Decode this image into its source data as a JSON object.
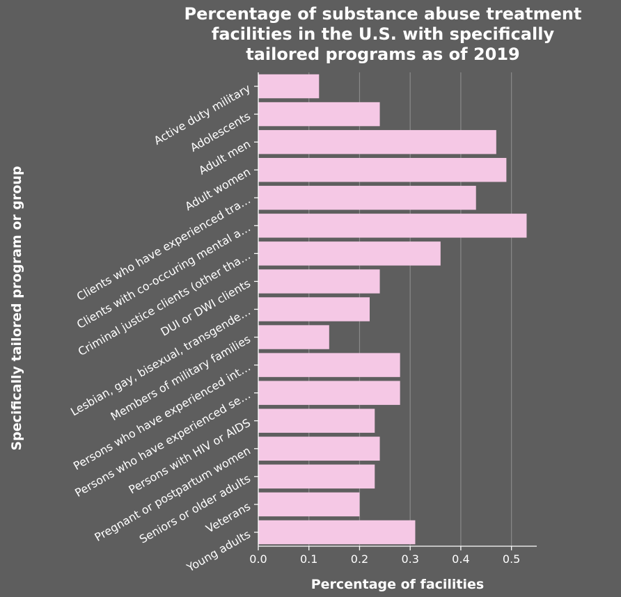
{
  "chart_data": {
    "type": "bar",
    "orientation": "horizontal",
    "title": "Percentage of substance abuse treatment facilities in the U.S. with specifically tailored programs as of 2019",
    "xlabel": "Percentage of facilities",
    "ylabel": "Specifically tailored program or group",
    "categories": [
      "Active duty military",
      "Adolescents",
      "Adult men",
      "Adult women",
      "Clients who have experienced tra…",
      "Clients with co-occuring mental a…",
      "Criminal justice clients (other tha…",
      "DUI or DWI clients",
      "Lesbian, gay, bisexual, transgende…",
      "Members of military families",
      "Persons who have experienced int…",
      "Persons who have experienced se…",
      "Persons with HIV or AIDS",
      "Pregnant or postpartum women",
      "Seniors or older adults",
      "Veterans",
      "Young adults"
    ],
    "values": [
      0.12,
      0.24,
      0.47,
      0.49,
      0.43,
      0.53,
      0.36,
      0.24,
      0.22,
      0.14,
      0.28,
      0.28,
      0.23,
      0.24,
      0.23,
      0.2,
      0.31
    ],
    "xlim": [
      0,
      0.55
    ],
    "xticks": [
      0.0,
      0.1,
      0.2,
      0.3,
      0.4,
      0.5
    ],
    "xtick_labels": [
      "0.0",
      "0.1",
      "0.2",
      "0.3",
      "0.4",
      "0.5"
    ],
    "grid": true,
    "legend": "none",
    "colors": {
      "background": "#5e5e5e",
      "bar": "#f5c8e5",
      "grid": "#8a8a8a",
      "text": "#ffffff"
    }
  }
}
